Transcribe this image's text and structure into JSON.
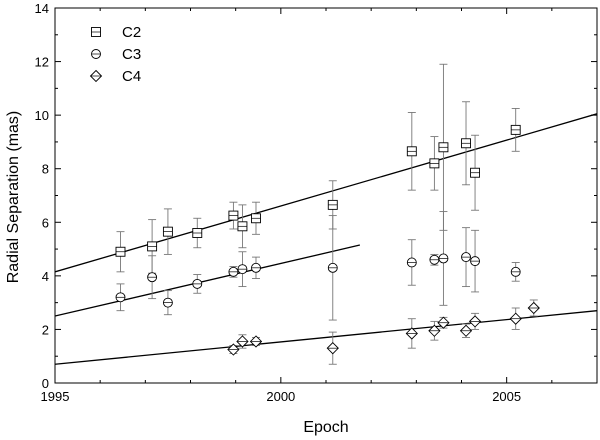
{
  "chart_data": {
    "type": "scatter",
    "title": "",
    "xlabel": "Epoch",
    "ylabel": "Radial Separation (mas)",
    "xlim": [
      1995,
      2007
    ],
    "ylim": [
      0,
      14
    ],
    "x_ticks": [
      1995,
      2000,
      2005
    ],
    "y_ticks": [
      0,
      2,
      4,
      6,
      8,
      10,
      12,
      14
    ],
    "grid": false,
    "legend_position": "top-left",
    "series": [
      {
        "name": "C2",
        "marker": "square",
        "color": "#000000",
        "points": [
          {
            "x": 1996.45,
            "y": 4.9,
            "err": 0.75
          },
          {
            "x": 1997.15,
            "y": 5.1,
            "err": 1.0
          },
          {
            "x": 1997.5,
            "y": 5.65,
            "err": 0.85
          },
          {
            "x": 1998.15,
            "y": 5.6,
            "err": 0.55
          },
          {
            "x": 1998.95,
            "y": 6.25,
            "err": 0.5
          },
          {
            "x": 1999.15,
            "y": 5.85,
            "err": 0.8
          },
          {
            "x": 1999.45,
            "y": 6.15,
            "err": 0.6
          },
          {
            "x": 2001.15,
            "y": 6.65,
            "err": 0.9
          },
          {
            "x": 2002.9,
            "y": 8.65,
            "err": 1.45
          },
          {
            "x": 2003.4,
            "y": 8.2,
            "err": 1.0
          },
          {
            "x": 2003.6,
            "y": 8.8,
            "err": 3.1
          },
          {
            "x": 2004.1,
            "y": 8.95,
            "err": 1.55
          },
          {
            "x": 2004.3,
            "y": 7.85,
            "err": 1.4
          },
          {
            "x": 2005.2,
            "y": 9.45,
            "err": 0.8
          }
        ],
        "fit": {
          "x": [
            1995,
            2007
          ],
          "y": [
            4.15,
            10.05
          ]
        }
      },
      {
        "name": "C3",
        "marker": "circle",
        "color": "#000000",
        "points": [
          {
            "x": 1996.45,
            "y": 3.2,
            "err": 0.5
          },
          {
            "x": 1997.15,
            "y": 3.95,
            "err": 0.8
          },
          {
            "x": 1997.5,
            "y": 3.0,
            "err": 0.45
          },
          {
            "x": 1998.15,
            "y": 3.7,
            "err": 0.35
          },
          {
            "x": 1998.95,
            "y": 4.15,
            "err": 0.2
          },
          {
            "x": 1999.15,
            "y": 4.25,
            "err": 0.65
          },
          {
            "x": 1999.45,
            "y": 4.3,
            "err": 0.4
          },
          {
            "x": 2001.15,
            "y": 4.3,
            "err": 1.95
          },
          {
            "x": 2002.9,
            "y": 4.5,
            "err": 0.85
          },
          {
            "x": 2003.4,
            "y": 4.6,
            "err": 0.2
          },
          {
            "x": 2003.6,
            "y": 4.65,
            "err": 1.75
          },
          {
            "x": 2004.1,
            "y": 4.7,
            "err": 1.1
          },
          {
            "x": 2004.3,
            "y": 4.55,
            "err": 1.15
          },
          {
            "x": 2005.2,
            "y": 4.15,
            "err": 0.35
          }
        ],
        "fit": {
          "x": [
            1995,
            2001.75
          ],
          "y": [
            2.5,
            5.15
          ]
        }
      },
      {
        "name": "C4",
        "marker": "diamond",
        "color": "#000000",
        "points": [
          {
            "x": 1998.95,
            "y": 1.25,
            "err": 0.15
          },
          {
            "x": 1999.15,
            "y": 1.55,
            "err": 0.25
          },
          {
            "x": 1999.45,
            "y": 1.55,
            "err": 0.15
          },
          {
            "x": 2001.15,
            "y": 1.3,
            "err": 0.6
          },
          {
            "x": 2002.9,
            "y": 1.85,
            "err": 0.55
          },
          {
            "x": 2003.4,
            "y": 1.95,
            "err": 0.35
          },
          {
            "x": 2003.6,
            "y": 2.25,
            "err": 0.2
          },
          {
            "x": 2004.1,
            "y": 1.95,
            "err": 0.25
          },
          {
            "x": 2004.3,
            "y": 2.3,
            "err": 0.3
          },
          {
            "x": 2005.2,
            "y": 2.4,
            "err": 0.4
          },
          {
            "x": 2005.6,
            "y": 2.8,
            "err": 0.3
          }
        ],
        "fit": {
          "x": [
            1995,
            2007
          ],
          "y": [
            0.7,
            2.7
          ]
        }
      }
    ]
  }
}
